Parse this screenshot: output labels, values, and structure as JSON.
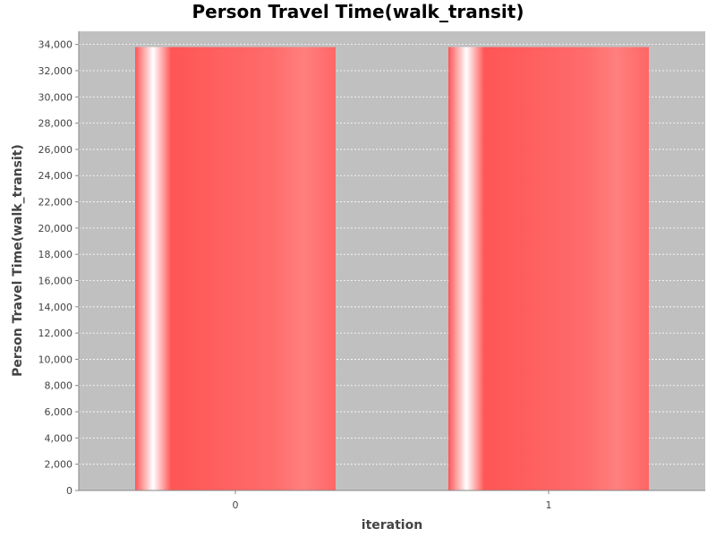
{
  "chart_data": {
    "type": "bar",
    "title": "Person Travel Time(walk_transit)",
    "xlabel": "iteration",
    "ylabel": "Person Travel Time(walk_transit)",
    "categories": [
      "0",
      "1"
    ],
    "values": [
      33800,
      33800
    ],
    "ylim": [
      0,
      35000
    ],
    "yticks": [
      0,
      2000,
      4000,
      6000,
      8000,
      10000,
      12000,
      14000,
      16000,
      18000,
      20000,
      22000,
      24000,
      26000,
      28000,
      30000,
      32000,
      34000
    ],
    "ytick_labels": [
      "0",
      "2,000",
      "4,000",
      "6,000",
      "8,000",
      "10,000",
      "12,000",
      "14,000",
      "16,000",
      "18,000",
      "20,000",
      "22,000",
      "24,000",
      "26,000",
      "28,000",
      "30,000",
      "32,000",
      "34,000"
    ],
    "grid": true,
    "legend": false,
    "colors": {
      "plot_background": "#c0c0c0",
      "bar": "#ff5555",
      "grid": "#ffffff",
      "axis": "#888888"
    }
  }
}
